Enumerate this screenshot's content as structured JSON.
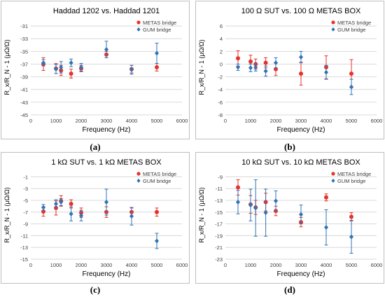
{
  "colors": {
    "metas": "#e8312b",
    "gum": "#2f75b5",
    "grid": "#d9d9d9",
    "frame": "#bfbfbf",
    "text": "#404040"
  },
  "chart_data": [
    {
      "type": "scatter",
      "title": "Haddad 1202 vs. Haddad 1201",
      "xlabel": "Frequency (Hz)",
      "ylabel": "R_x/R_N - 1 (μΩ/Ω)",
      "caption": "(a)",
      "xlim": [
        0,
        6000
      ],
      "xticks": [
        0,
        1000,
        2000,
        3000,
        4000,
        5000,
        6000
      ],
      "ylim": [
        -45,
        -30
      ],
      "yticks": [
        -45,
        -43,
        -41,
        -39,
        -37,
        -35,
        -33,
        -31
      ],
      "grid": true,
      "legend_position": "top-right",
      "series": [
        {
          "name": "METAS bridge",
          "color_key": "metas",
          "x": [
            500,
            1000,
            1200,
            1600,
            2000,
            3000,
            4000,
            5000
          ],
          "y": [
            -37.0,
            -37.7,
            -38.0,
            -38.5,
            -37.7,
            -35.5,
            -37.8,
            -37.5
          ],
          "err": [
            1.0,
            0.8,
            0.8,
            0.7,
            0.5,
            0.5,
            0.6,
            0.6
          ]
        },
        {
          "name": "GUM bridge",
          "color_key": "gum",
          "x": [
            500,
            1000,
            1200,
            1600,
            2000,
            3000,
            4000,
            5000
          ],
          "y": [
            -36.8,
            -37.8,
            -37.5,
            -36.8,
            -37.5,
            -34.7,
            -37.9,
            -35.3
          ],
          "err": [
            0.5,
            0.7,
            0.9,
            0.6,
            0.6,
            1.3,
            0.7,
            1.6
          ]
        }
      ]
    },
    {
      "type": "scatter",
      "title": "100 Ω SUT vs. 100 Ω METAS BOX",
      "xlabel": "Frequency (Hz)",
      "ylabel": "R_x/R_N - 1 (μΩ/Ω)",
      "caption": "(b)",
      "xlim": [
        0,
        6000
      ],
      "xticks": [
        0,
        1000,
        2000,
        3000,
        4000,
        5000,
        6000
      ],
      "ylim": [
        -8,
        7
      ],
      "yticks": [
        -8,
        -6,
        -4,
        -2,
        0,
        2,
        4,
        6
      ],
      "grid": true,
      "legend_position": "top-right",
      "series": [
        {
          "name": "METAS bridge",
          "color_key": "metas",
          "x": [
            500,
            1000,
            1200,
            1600,
            2000,
            3000,
            4000,
            5000
          ],
          "y": [
            0.9,
            0.4,
            0.0,
            0.2,
            -0.8,
            -1.5,
            -0.5,
            -1.5
          ],
          "err": [
            1.2,
            1.0,
            0.8,
            0.8,
            1.0,
            1.8,
            1.8,
            2.2
          ]
        },
        {
          "name": "GUM bridge",
          "color_key": "gum",
          "x": [
            500,
            1000,
            1200,
            1600,
            2000,
            3000,
            4000,
            5000
          ],
          "y": [
            -0.5,
            -0.6,
            -0.5,
            -1.1,
            0.2,
            1.1,
            -1.3,
            -3.6
          ],
          "err": [
            0.5,
            0.6,
            0.6,
            0.8,
            0.8,
            0.9,
            1.1,
            1.2
          ]
        }
      ]
    },
    {
      "type": "scatter",
      "title": "1 kΩ SUT vs. 1 kΩ METAS BOX",
      "xlabel": "Frequency (Hz)",
      "ylabel": "R_x/R_N - 1 (μΩ/Ω)",
      "caption": "(c)",
      "xlim": [
        0,
        6000
      ],
      "xticks": [
        0,
        1000,
        2000,
        3000,
        4000,
        5000,
        6000
      ],
      "ylim": [
        -15,
        0
      ],
      "yticks": [
        -15,
        -13,
        -11,
        -9,
        -7,
        -5,
        -3,
        -1
      ],
      "grid": true,
      "legend_position": "top-right",
      "series": [
        {
          "name": "METAS bridge",
          "color_key": "metas",
          "x": [
            500,
            1000,
            1200,
            1600,
            2000,
            3000,
            4000,
            5000
          ],
          "y": [
            -6.9,
            -6.3,
            -5.1,
            -5.6,
            -7.1,
            -7.0,
            -7.0,
            -7.0
          ],
          "err": [
            0.8,
            1.2,
            0.9,
            0.7,
            0.8,
            0.9,
            0.7,
            0.7
          ]
        },
        {
          "name": "GUM bridge",
          "color_key": "gum",
          "x": [
            500,
            1000,
            1200,
            1600,
            2000,
            3000,
            4000,
            5000
          ],
          "y": [
            -6.2,
            -5.6,
            -5.3,
            -7.3,
            -7.6,
            -5.3,
            -7.7,
            -11.9
          ],
          "err": [
            0.5,
            0.7,
            0.6,
            1.2,
            0.9,
            2.2,
            1.5,
            1.3
          ]
        }
      ]
    },
    {
      "type": "scatter",
      "title": "10 kΩ SUT vs. 10 kΩ METAS BOX",
      "xlabel": "Frequency (Hz)",
      "ylabel": "R_x/R_N - 1 (μΩ/Ω)",
      "caption": "(d)",
      "xlim": [
        0,
        6000
      ],
      "xticks": [
        0,
        1000,
        2000,
        3000,
        4000,
        5000,
        6000
      ],
      "ylim": [
        -23,
        -8
      ],
      "yticks": [
        -23,
        -21,
        -19,
        -17,
        -15,
        -13,
        -11,
        -9
      ],
      "grid": true,
      "legend_position": "top-right",
      "series": [
        {
          "name": "METAS bridge",
          "color_key": "metas",
          "x": [
            500,
            1000,
            1200,
            1600,
            2000,
            3000,
            4000,
            5000
          ],
          "y": [
            -10.8,
            -13.7,
            -14.2,
            -13.3,
            -14.8,
            -16.7,
            -12.5,
            -15.8
          ],
          "err": [
            1.3,
            1.5,
            1.2,
            1.5,
            0.8,
            0.8,
            0.6,
            0.7
          ]
        },
        {
          "name": "GUM bridge",
          "color_key": "gum",
          "x": [
            500,
            1000,
            1200,
            1600,
            2000,
            3000,
            4000,
            5000
          ],
          "y": [
            -13.3,
            -13.8,
            -14.3,
            -15.1,
            -13.1,
            -15.4,
            -17.6,
            -19.2
          ],
          "err": [
            2.0,
            2.7,
            4.8,
            4.0,
            1.7,
            1.6,
            3.0,
            2.8
          ]
        }
      ]
    }
  ]
}
